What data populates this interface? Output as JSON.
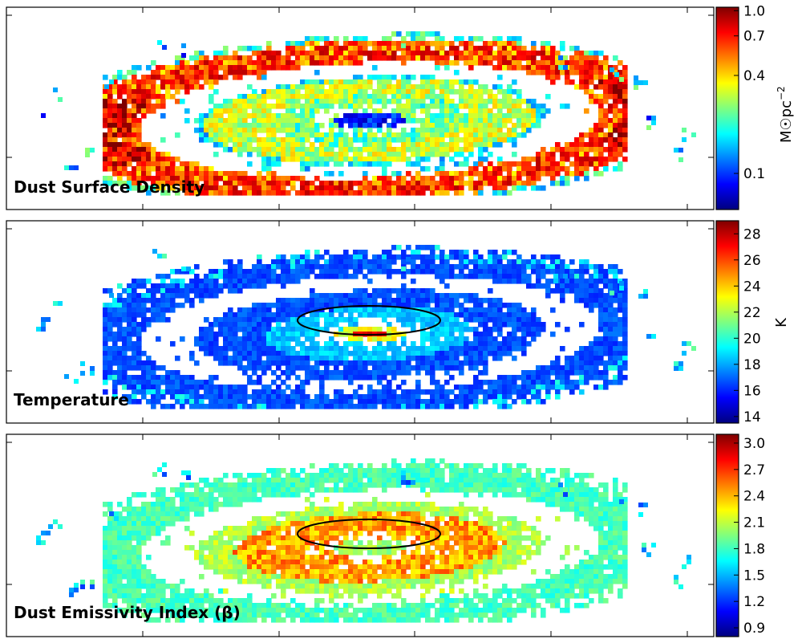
{
  "colormap": [
    "#00007f",
    "#0000ff",
    "#007fff",
    "#00ffff",
    "#7fff7f",
    "#ffff00",
    "#ff7f00",
    "#ff0000",
    "#7f0000"
  ],
  "chart_data": [
    {
      "type": "heatmap",
      "title": "Dust Surface Density",
      "colorbar": {
        "label": "M☉pc",
        "label_exponent": "−2",
        "scale": "log",
        "range": [
          0.06,
          1.05
        ],
        "ticks": [
          {
            "value": 1.0,
            "label": "1.0"
          },
          {
            "value": 0.7,
            "label": "0.7"
          },
          {
            "value": 0.4,
            "label": "0.4"
          },
          {
            "value": 0.1,
            "label": "0.1"
          }
        ]
      },
      "map_features": [
        "bright outer dust ring (~0.5–1.0)",
        "inner ring (~0.2–0.4)",
        "low-density centre (~0.07)"
      ],
      "ellipse": false
    },
    {
      "type": "heatmap",
      "title": "Temperature",
      "colorbar": {
        "label": "K",
        "scale": "linear",
        "range": [
          13.5,
          29
        ],
        "ticks": [
          {
            "value": 28,
            "label": "28"
          },
          {
            "value": 26,
            "label": "26"
          },
          {
            "value": 24,
            "label": "24"
          },
          {
            "value": 22,
            "label": "22"
          },
          {
            "value": 20,
            "label": "20"
          },
          {
            "value": 18,
            "label": "18"
          },
          {
            "value": 16,
            "label": "16"
          },
          {
            "value": 14,
            "label": "14"
          }
        ]
      },
      "map_features": [
        "outer disk ~16–17 K",
        "hot nucleus ~28 K"
      ],
      "ellipse": true
    },
    {
      "type": "heatmap",
      "title": "Dust Emissivity Index (β)",
      "colorbar": {
        "label": "",
        "scale": "linear",
        "range": [
          0.8,
          3.1
        ],
        "ticks": [
          {
            "value": 3.0,
            "label": "3.0"
          },
          {
            "value": 2.7,
            "label": "2.7"
          },
          {
            "value": 2.4,
            "label": "2.4"
          },
          {
            "value": 2.1,
            "label": "2.1"
          },
          {
            "value": 1.8,
            "label": "1.8"
          },
          {
            "value": 1.5,
            "label": "1.5"
          },
          {
            "value": 1.2,
            "label": "1.2"
          },
          {
            "value": 0.9,
            "label": "0.9"
          }
        ]
      },
      "map_features": [
        "outer disk β ~1.8–2.0",
        "inner region β ~2.4–2.8"
      ],
      "ellipse": true
    }
  ]
}
